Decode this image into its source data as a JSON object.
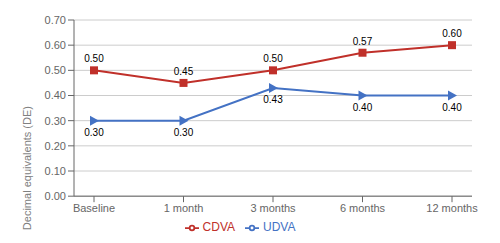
{
  "chart_data": {
    "type": "line",
    "categories": [
      "Baseline",
      "1 month",
      "3 months",
      "6 months",
      "12 months"
    ],
    "series": [
      {
        "name": "UDVA",
        "color": "#4472C4",
        "marker": "triangle-right",
        "values": [
          0.3,
          0.3,
          0.43,
          0.4,
          0.4
        ],
        "value_labels": [
          "0.30",
          "0.30",
          "0.43",
          "0.40",
          "0.40"
        ]
      },
      {
        "name": "CDVA",
        "color": "#C0302A",
        "marker": "square",
        "values": [
          0.5,
          0.45,
          0.5,
          0.57,
          0.6
        ],
        "value_labels": [
          "0.50",
          "0.45",
          "0.50",
          "0.57",
          "0.60"
        ]
      }
    ],
    "ylabel": "Decimal equivalents (DE)",
    "ylim": [
      0.0,
      0.7
    ],
    "yticks": [
      {
        "value": 0.0,
        "label": "0.00"
      },
      {
        "value": 0.1,
        "label": "0.10"
      },
      {
        "value": 0.2,
        "label": "0.20"
      },
      {
        "value": 0.3,
        "label": "0.30"
      },
      {
        "value": 0.4,
        "label": "0.40"
      },
      {
        "value": 0.5,
        "label": "0.50"
      },
      {
        "value": 0.6,
        "label": "0.60"
      },
      {
        "value": 0.7,
        "label": "0.70"
      }
    ],
    "grid": true,
    "legend": "bottom",
    "data_labels": true
  }
}
